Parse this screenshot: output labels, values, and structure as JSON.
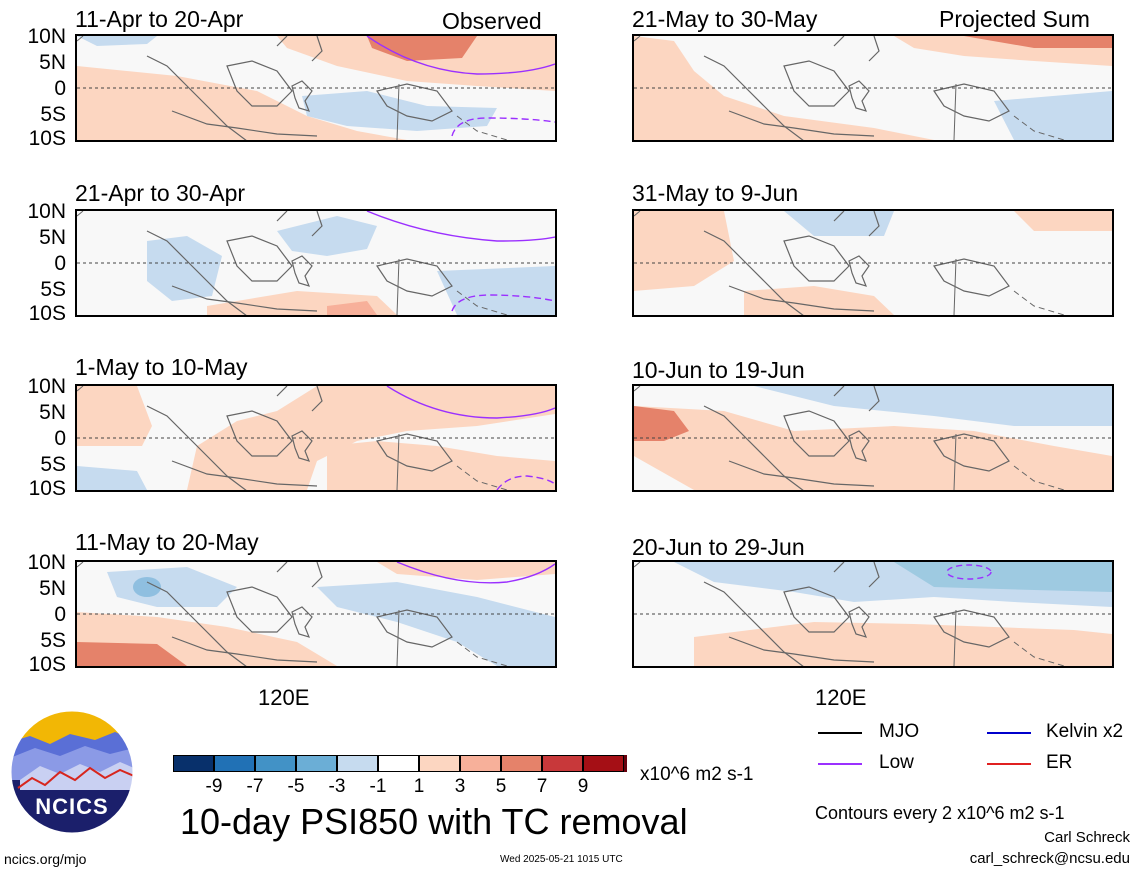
{
  "panels_left": [
    {
      "title": "11-Apr to 20-Apr"
    },
    {
      "title": "21-Apr to 30-Apr"
    },
    {
      "title": "1-May to 10-May"
    },
    {
      "title": "11-May to 20-May"
    }
  ],
  "panels_right": [
    {
      "title": "21-May to 30-May"
    },
    {
      "title": "31-May to 9-Jun"
    },
    {
      "title": "10-Jun to 19-Jun"
    },
    {
      "title": "20-Jun to 29-Jun"
    }
  ],
  "header": {
    "observed": "Observed",
    "projected": "Projected Sum"
  },
  "lat_ticks": [
    "10N",
    "5N",
    "0",
    "5S",
    "10S"
  ],
  "lon_label": "120E",
  "colorbar": {
    "colors": [
      "#08306b",
      "#2171b5",
      "#4292c6",
      "#6baed6",
      "#c6dbef",
      "#ffffff",
      "#fcd6c1",
      "#f7b09a",
      "#e5826a",
      "#c8383a",
      "#a50f15",
      "#67000d"
    ],
    "ticks": [
      "-9",
      "-7",
      "-5",
      "-3",
      "-1",
      "1",
      "3",
      "5",
      "7",
      "9"
    ],
    "units": "x10^6 m2 s-1"
  },
  "main_title": "10-day PSI850 with TC removal",
  "legend": [
    {
      "label": "MJO",
      "color": "#000000"
    },
    {
      "label": "Kelvin x2",
      "color": "#0000cc"
    },
    {
      "label": "Low",
      "color": "#9b30ff"
    },
    {
      "label": "ER",
      "color": "#e02020"
    }
  ],
  "contours_note": "Contours every 2 x10^6 m2 s-1",
  "author": "Carl Schreck",
  "email": "carl_schreck@ncsu.edu",
  "site": "ncics.org/mjo",
  "timestamp": "Wed 2025-05-21 1015 UTC",
  "logo_text": "NCICS"
}
